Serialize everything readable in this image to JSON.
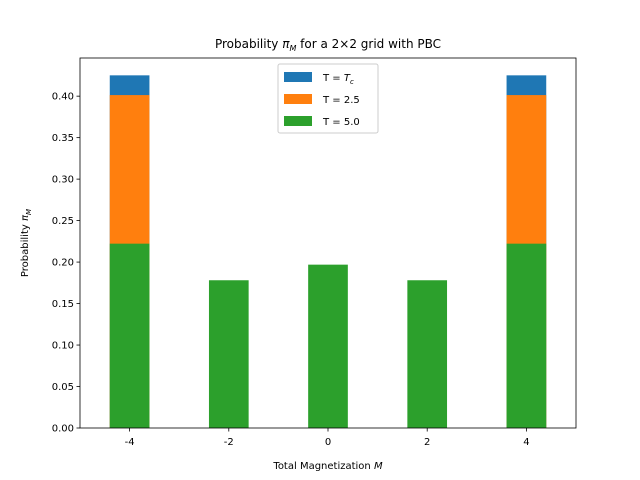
{
  "chart_data": {
    "type": "bar",
    "title_prefix": "Probability ",
    "title_var": "π",
    "title_sub": "M",
    "title_suffix": " for a 2×2 grid with PBC",
    "xlabel_text": "Total Magnetization ",
    "xlabel_var": "M",
    "ylabel_text": "Probability ",
    "ylabel_var": "π",
    "ylabel_sub": "M",
    "x": [
      -4,
      -2,
      0,
      2,
      4
    ],
    "xtick_labels": [
      "-4",
      "-2",
      "0",
      "2",
      "4"
    ],
    "ylim": [
      0,
      0.446
    ],
    "yticks": [
      0.0,
      0.05,
      0.1,
      0.15,
      0.2,
      0.25,
      0.3,
      0.35,
      0.4
    ],
    "ytick_labels": [
      "0.00",
      "0.05",
      "0.10",
      "0.15",
      "0.20",
      "0.25",
      "0.30",
      "0.35",
      "0.40"
    ],
    "bar_width": 0.8,
    "series": [
      {
        "name_text": "T = ",
        "name_var": "T",
        "name_sub": "c",
        "color": "#1f77b4",
        "values": [
          0.4251,
          0.0,
          0.0,
          0.0,
          0.4251
        ]
      },
      {
        "name_text": "T = 2.5",
        "name_var": "",
        "name_sub": "",
        "color": "#ff7f0e",
        "values": [
          0.4013,
          0.0,
          0.0,
          0.0,
          0.4013
        ]
      },
      {
        "name_text": "T = 5.0",
        "name_var": "",
        "name_sub": "",
        "color": "#2ca02c",
        "values": [
          0.2222,
          0.1781,
          0.1969,
          0.1781,
          0.2222
        ]
      }
    ],
    "legend_position": "top-center",
    "grid": false
  }
}
